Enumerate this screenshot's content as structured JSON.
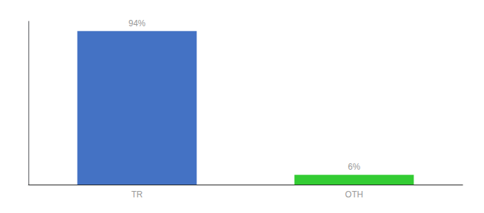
{
  "chart_data": {
    "type": "bar",
    "categories": [
      "TR",
      "OTH"
    ],
    "values": [
      94,
      6
    ],
    "value_labels": [
      "94%",
      "6%"
    ],
    "colors": [
      "#4472c4",
      "#33cc33"
    ],
    "ylim": [
      0,
      100
    ],
    "tick_labels": "x",
    "grid": false,
    "data_labels": true
  }
}
